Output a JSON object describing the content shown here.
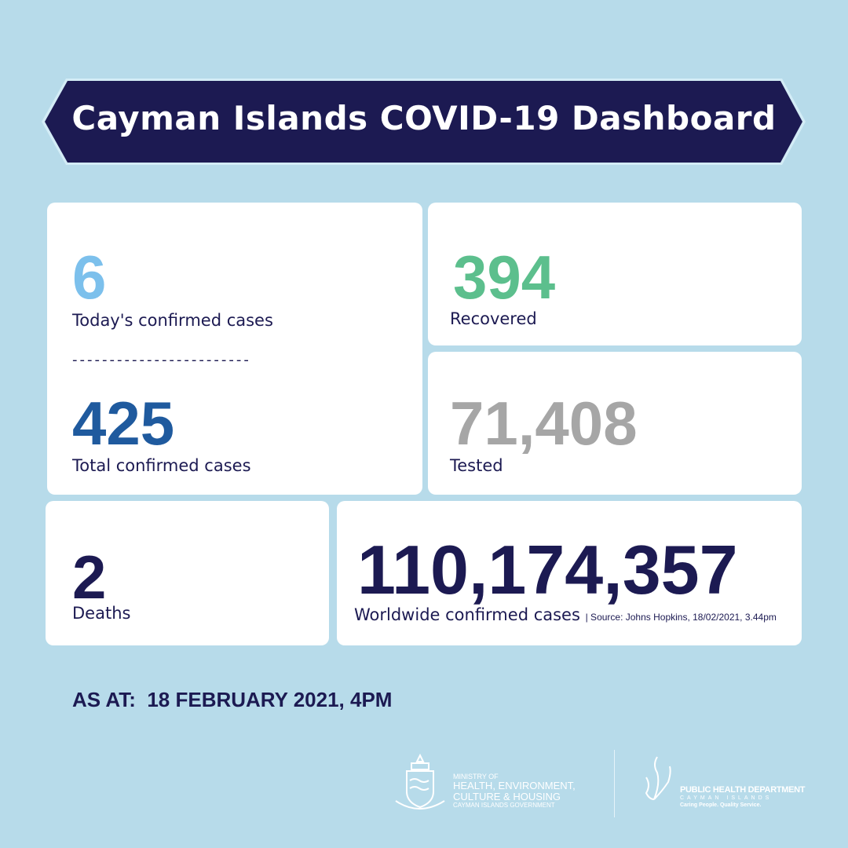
{
  "header": {
    "title": "Cayman Islands COVID-19 Dashboard"
  },
  "stats": {
    "today": {
      "value": "6",
      "label": "Today's confirmed cases",
      "color": "#7cc0ec"
    },
    "separator": "------------------------",
    "total": {
      "value": "425",
      "label": "Total confirmed cases",
      "color": "#1f5a9e"
    },
    "recovered": {
      "value": "394",
      "label": "Recovered",
      "color": "#5cbf8d"
    },
    "tested": {
      "value": "71,408",
      "label": "Tested",
      "color": "#a6a6a6"
    },
    "deaths": {
      "value": "2",
      "label": "Deaths",
      "color": "#1c1a52"
    },
    "worldwide": {
      "value": "110,174,357",
      "label": "Worldwide confirmed cases",
      "source": "| Source: Johns Hopkins, 18/02/2021, 3.44pm",
      "color": "#1c1a52"
    }
  },
  "as_at": "AS AT:  18 FEBRUARY 2021, 4PM",
  "footer": {
    "ministry": [
      "MINISTRY OF",
      "HEALTH, ENVIRONMENT,",
      "CULTURE & HOUSING",
      "CAYMAN ISLANDS GOVERNMENT"
    ],
    "phd": [
      "PUBLIC HEALTH DEPARTMENT",
      "CAYMAN ISLANDS",
      "Caring People. Quality Service."
    ]
  },
  "colors": {
    "background": "#b7dbea",
    "navy": "#1c1a52"
  }
}
